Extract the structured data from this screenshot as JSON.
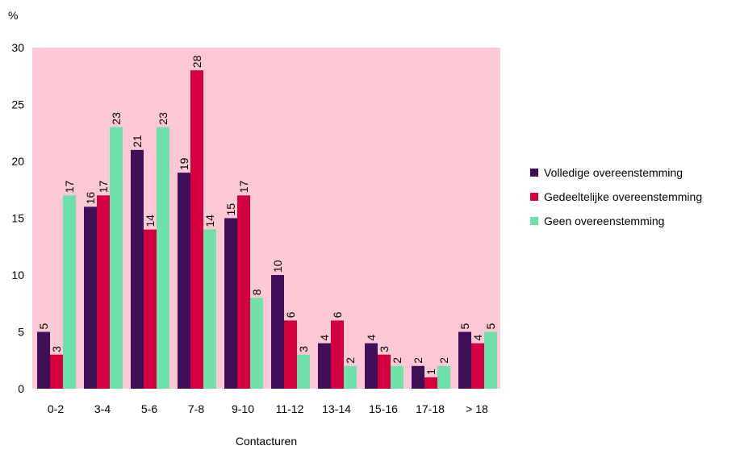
{
  "chart_data": {
    "type": "bar",
    "ylabel": "%",
    "xlabel": "Contacturen",
    "ylim": [
      0,
      30
    ],
    "yticks": [
      0,
      5,
      10,
      15,
      20,
      25,
      30
    ],
    "grid": false,
    "legend_position": "right",
    "plot_background": "#FFC8D6",
    "categories": [
      "0-2",
      "3-4",
      "5-6",
      "7-8",
      "9-10",
      "11-12",
      "13-14",
      "15-16",
      "17-18",
      "> 18"
    ],
    "series": [
      {
        "name": "Volledige overeenstemming",
        "color": "#3F1057",
        "values": [
          5,
          16,
          21,
          19,
          15,
          10,
          4,
          4,
          2,
          5
        ]
      },
      {
        "name": "Gedeeltelijke overeenstemming",
        "color": "#D3003F",
        "values": [
          3,
          17,
          14,
          28,
          17,
          6,
          6,
          3,
          1,
          4
        ]
      },
      {
        "name": "Geen overeenstemming",
        "color": "#6EE0A8",
        "values": [
          17,
          23,
          23,
          14,
          8,
          3,
          2,
          2,
          2,
          5
        ]
      }
    ]
  }
}
